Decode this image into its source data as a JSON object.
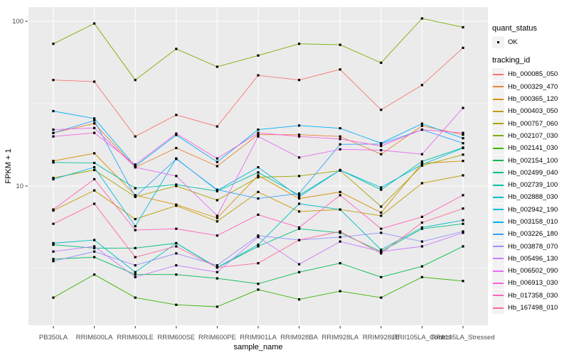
{
  "theme": {
    "panel_bg": "#EBEBEB",
    "grid_color": "#FFFFFF",
    "tick_text_color": "#4D4D4D",
    "tick_mark_color": "#333333",
    "axis_title_color": "#000000",
    "legend_key_bg": "#F2F2F2",
    "point_color": "#000000"
  },
  "legend": {
    "quant_status_title": "quant_status",
    "quant_status_items": [
      {
        "label": "OK"
      }
    ],
    "tracking_id_title": "tracking_id"
  },
  "chart_data": {
    "type": "line",
    "title": "",
    "xlabel": "sample_name",
    "ylabel": "FPKM + 1",
    "y_scale": "log10",
    "ylim": [
      1.43,
      122
    ],
    "y_major_ticks": [
      100,
      10
    ],
    "y_major_tick_labels": [
      "100",
      "10"
    ],
    "y_minor_gridlines": [
      31.623,
      3.162
    ],
    "grid": true,
    "legend_position": "right",
    "point_shape": "square",
    "categories": [
      "PB350LA",
      "RRIM600LA",
      "RRIM600LE",
      "RRIM600SE",
      "RRIM600PE",
      "RRIM901LA",
      "RRIM928BA",
      "RRIM928LA",
      "RRIM928LE",
      "RRII105LA_Control",
      "RRII105LA_Stressed"
    ],
    "series": [
      {
        "name": "Hb_000085_050",
        "color": "#F8766D",
        "values": [
          44,
          43,
          20,
          27,
          23,
          47,
          44,
          51,
          29,
          41,
          69
        ]
      },
      {
        "name": "Hb_000329_470",
        "color": "#EA8331",
        "values": [
          21,
          24,
          13,
          17,
          13.2,
          20.5,
          20.5,
          20.0,
          15.6,
          23.2,
          20.5
        ]
      },
      {
        "name": "Hb_000365_120",
        "color": "#D89000",
        "values": [
          14.2,
          15.8,
          8.8,
          7.7,
          6.4,
          11.6,
          8.4,
          9.2,
          6.9,
          13.7,
          14.2
        ]
      },
      {
        "name": "Hb_000403_050",
        "color": "#C09B00",
        "values": [
          7.1,
          9.4,
          6.3,
          7.6,
          6.1,
          9.2,
          7.0,
          7.2,
          6.6,
          10.4,
          11.6
        ]
      },
      {
        "name": "Hb_000757_060",
        "color": "#A3A500",
        "values": [
          11.2,
          12.5,
          8.6,
          10.0,
          8.2,
          11.3,
          11.5,
          12.4,
          7.5,
          13.3,
          15.5
        ]
      },
      {
        "name": "Hb_002107_030",
        "color": "#7CAE00",
        "values": [
          73,
          97,
          44,
          68,
          53,
          62,
          73,
          72,
          56,
          104,
          92
        ]
      },
      {
        "name": "Hb_002141_030",
        "color": "#39B600",
        "values": [
          2.1,
          2.9,
          2.1,
          1.9,
          1.85,
          2.35,
          2.05,
          2.3,
          2.1,
          2.8,
          2.65
        ]
      },
      {
        "name": "Hb_002154_100",
        "color": "#00BB4E",
        "values": [
          3.6,
          3.7,
          2.9,
          2.9,
          2.75,
          2.55,
          3.0,
          3.4,
          2.8,
          3.25,
          4.3
        ]
      },
      {
        "name": "Hb_002499_040",
        "color": "#00BF7D",
        "values": [
          4.4,
          4.2,
          4.2,
          4.5,
          3.2,
          4.3,
          5.5,
          5.2,
          4.0,
          5.5,
          5.9
        ]
      },
      {
        "name": "Hb_002739_100",
        "color": "#00C1A3",
        "values": [
          13.9,
          13.8,
          9.7,
          10.2,
          9.3,
          12.1,
          8.8,
          12.5,
          9.5,
          14.1,
          17.1
        ]
      },
      {
        "name": "Hb_002888_030",
        "color": "#00BFC4",
        "values": [
          4.5,
          4.7,
          3.0,
          4.5,
          3.2,
          4.4,
          7.8,
          7.2,
          4.1,
          5.6,
          6.2
        ]
      },
      {
        "name": "Hb_002942_190",
        "color": "#00BAE0",
        "values": [
          11.0,
          13.0,
          5.7,
          14.7,
          9.4,
          13.0,
          8.6,
          12.5,
          9.8,
          13.5,
          17.0
        ]
      },
      {
        "name": "Hb_003158_010",
        "color": "#00B0F6",
        "values": [
          28.5,
          25.7,
          13.2,
          20.4,
          14.0,
          22,
          23.3,
          22.4,
          18.2,
          23.9,
          19.5
        ]
      },
      {
        "name": "Hb_003226_180",
        "color": "#35A2FF",
        "values": [
          21,
          25,
          8.6,
          14.6,
          9.5,
          8.4,
          9.0,
          17.9,
          18.0,
          22,
          18.2
        ]
      },
      {
        "name": "Hb_003878_070",
        "color": "#9590FF",
        "values": [
          3.5,
          4.0,
          3.3,
          3.9,
          3.3,
          5.0,
          4.7,
          4.9,
          5.2,
          4.6,
          5.3
        ]
      },
      {
        "name": "Hb_005496_130",
        "color": "#C77CFF",
        "values": [
          4.0,
          4.3,
          2.8,
          3.3,
          3.0,
          4.9,
          3.35,
          4.6,
          4.0,
          4.3,
          5.2
        ]
      },
      {
        "name": "Hb_006502_090",
        "color": "#E76BF3",
        "values": [
          22,
          22.5,
          13.0,
          11.5,
          6.6,
          20,
          14.9,
          16.7,
          16.5,
          15.6,
          29.8
        ]
      },
      {
        "name": "Hb_006913_030",
        "color": "#FA62DB",
        "values": [
          20,
          21,
          13.5,
          20.8,
          14.7,
          21,
          20,
          19.3,
          17.5,
          22,
          21
        ]
      },
      {
        "name": "Hb_017358_030",
        "color": "#FF62BC",
        "values": [
          7.2,
          11,
          5.4,
          5.5,
          5.0,
          6.7,
          5.6,
          8.8,
          5.5,
          6.5,
          8.8
        ]
      },
      {
        "name": "Hb_167498_010",
        "color": "#FF6A98",
        "values": [
          5.9,
          7.8,
          3.7,
          4.3,
          3.2,
          3.4,
          4.7,
          5.3,
          3.9,
          6.0,
          7.3
        ]
      }
    ]
  }
}
